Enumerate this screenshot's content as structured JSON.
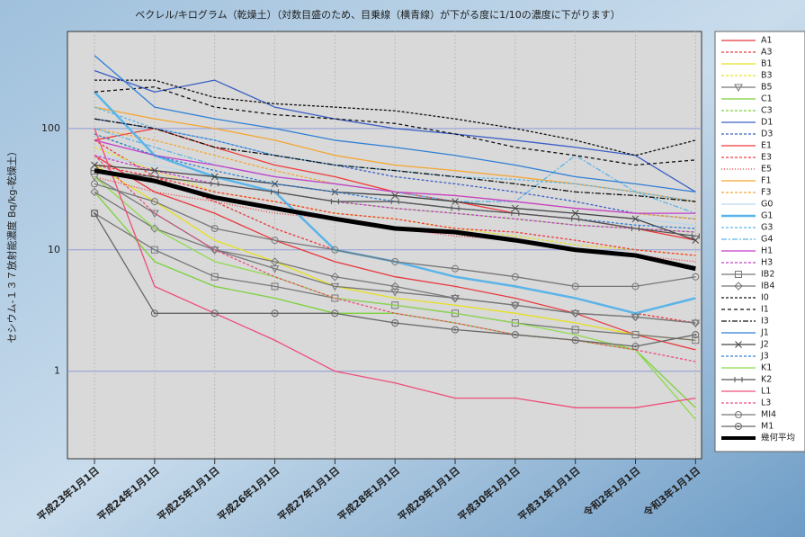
{
  "chart_data": {
    "type": "line",
    "log_y": true,
    "grid": true,
    "title": "ベクレル/キログラム（乾燥土）（対数目盛のため、目乗線（横青線）が下がる度に1/10の濃度に下がります）",
    "y_label": "セシウム-１３７放射能濃度 Bq/kg-乾燥土）",
    "x": [
      0,
      4,
      8,
      12,
      16,
      20,
      24,
      28,
      32,
      36,
      40
    ],
    "xlim": [
      -1.8,
      40.4
    ],
    "xticks": [
      {
        "value": 0,
        "label": "平成23年1月1日"
      },
      {
        "value": 4,
        "label": "平成24年1月1日"
      },
      {
        "value": 8,
        "label": "平成25年1月1日"
      },
      {
        "value": 12,
        "label": "平成26年1月1日"
      },
      {
        "value": 16,
        "label": "平成27年1月1日"
      },
      {
        "value": 20,
        "label": "平成28年1月1日"
      },
      {
        "value": 24,
        "label": "平成29年1月1日"
      },
      {
        "value": 28,
        "label": "平成30年1月1日"
      },
      {
        "value": 32,
        "label": "平成31年1月1日"
      },
      {
        "value": 36,
        "label": "令和2年1月1日"
      },
      {
        "value": 40,
        "label": "令和3年1月1日"
      }
    ],
    "ylim": [
      0.19,
      630
    ],
    "yticks": [
      1,
      10,
      100
    ],
    "series": [
      {
        "name": "A1",
        "color": "#e8383d",
        "dash": "",
        "values": [
          60,
          30,
          20,
          12,
          8,
          6,
          5,
          4,
          3,
          2,
          1.5
        ]
      },
      {
        "name": "A3",
        "color": "#e8383d",
        "dash": "3 2",
        "values": [
          80,
          40,
          25,
          15,
          10,
          8,
          6,
          5,
          4,
          3,
          2.5
        ]
      },
      {
        "name": "B1",
        "color": "#e6e020",
        "dash": "",
        "values": [
          50,
          25,
          12,
          8,
          5,
          4,
          3.5,
          3,
          2.5,
          2,
          1.8
        ]
      },
      {
        "name": "B3",
        "color": "#e6e020",
        "dash": "3 2",
        "values": [
          70,
          45,
          30,
          25,
          20,
          18,
          15,
          13,
          11,
          10,
          9
        ]
      },
      {
        "name": "B5",
        "color": "#777777",
        "dash": "",
        "marker": "triangle",
        "values": [
          40,
          20,
          10,
          7,
          5,
          4.5,
          4,
          3.5,
          3,
          2.8,
          2.5
        ]
      },
      {
        "name": "C1",
        "color": "#7cd13a",
        "dash": "",
        "values": [
          30,
          8,
          5,
          4,
          3,
          3,
          2.5,
          2,
          1.8,
          1.5,
          0.5
        ]
      },
      {
        "name": "C3",
        "color": "#7cd13a",
        "dash": "3 2",
        "values": [
          90,
          60,
          40,
          30,
          25,
          22,
          20,
          18,
          16,
          15,
          14
        ]
      },
      {
        "name": "D1",
        "color": "#3b5fc4",
        "dash": "",
        "values": [
          300,
          200,
          250,
          150,
          120,
          100,
          90,
          80,
          70,
          60,
          30
        ]
      },
      {
        "name": "D3",
        "color": "#3b5fc4",
        "dash": "3 2",
        "values": [
          120,
          100,
          80,
          60,
          50,
          40,
          35,
          30,
          25,
          20,
          18
        ]
      },
      {
        "name": "E1",
        "color": "#f03a3a",
        "dash": "",
        "values": [
          80,
          100,
          70,
          50,
          40,
          30,
          25,
          20,
          18,
          15,
          12
        ]
      },
      {
        "name": "E3",
        "color": "#f03a3a",
        "dash": "3 2",
        "values": [
          50,
          40,
          30,
          25,
          20,
          18,
          15,
          14,
          12,
          10,
          9
        ]
      },
      {
        "name": "E5",
        "color": "#f03a3a",
        "dash": "1 2",
        "values": [
          40,
          30,
          25,
          20,
          18,
          15,
          13,
          12,
          10,
          9,
          8
        ]
      },
      {
        "name": "F1",
        "color": "#f5a530",
        "dash": "",
        "values": [
          150,
          120,
          100,
          80,
          60,
          50,
          45,
          40,
          35,
          30,
          25
        ]
      },
      {
        "name": "F3",
        "color": "#f5a530",
        "dash": "3 2",
        "values": [
          100,
          80,
          60,
          45,
          35,
          30,
          28,
          25,
          22,
          20,
          18
        ]
      },
      {
        "name": "G0",
        "color": "#b9d7ec",
        "dash": "",
        "values": [
          60,
          50,
          40,
          35,
          30,
          28,
          25,
          22,
          20,
          18,
          16
        ]
      },
      {
        "name": "G1",
        "color": "#5ab4e8",
        "dash": "",
        "width": 2.5,
        "values": [
          200,
          60,
          40,
          30,
          10,
          8,
          6,
          5,
          4,
          3,
          4
        ]
      },
      {
        "name": "G3",
        "color": "#5ab4e8",
        "dash": "3 2",
        "values": [
          150,
          100,
          80,
          60,
          50,
          45,
          40,
          38,
          35,
          30,
          25
        ]
      },
      {
        "name": "G4",
        "color": "#5ab4e8",
        "dash": "6 2 2 2",
        "values": [
          100,
          70,
          50,
          40,
          35,
          30,
          25,
          25,
          60,
          30,
          20
        ]
      },
      {
        "name": "H1",
        "color": "#c53ec9",
        "dash": "",
        "values": [
          80,
          60,
          50,
          40,
          35,
          30,
          28,
          25,
          22,
          20,
          20
        ]
      },
      {
        "name": "H3",
        "color": "#c53ec9",
        "dash": "3 2",
        "values": [
          60,
          45,
          35,
          30,
          25,
          22,
          20,
          18,
          16,
          15,
          14
        ]
      },
      {
        "name": "IB2",
        "color": "#777777",
        "dash": "",
        "marker": "square",
        "values": [
          20,
          10,
          6,
          5,
          4,
          3.5,
          3,
          2.5,
          2.2,
          2,
          1.8
        ]
      },
      {
        "name": "IB4",
        "color": "#777777",
        "dash": "",
        "marker": "diamond",
        "values": [
          30,
          15,
          10,
          8,
          6,
          5,
          4,
          3.5,
          3,
          2.8,
          2.5
        ]
      },
      {
        "name": "I0",
        "color": "#111111",
        "dash": "3 2",
        "values": [
          250,
          250,
          180,
          160,
          150,
          140,
          120,
          100,
          80,
          60,
          80
        ]
      },
      {
        "name": "I1",
        "color": "#111111",
        "dash": "4 3",
        "values": [
          200,
          220,
          150,
          130,
          120,
          110,
          90,
          70,
          60,
          50,
          55
        ]
      },
      {
        "name": "I3",
        "color": "#111111",
        "dash": "6 2 2 2",
        "values": [
          120,
          100,
          70,
          60,
          50,
          45,
          40,
          35,
          30,
          28,
          25
        ]
      },
      {
        "name": "J1",
        "color": "#2f7fd6",
        "dash": "",
        "values": [
          400,
          150,
          120,
          100,
          80,
          70,
          60,
          50,
          40,
          35,
          30
        ]
      },
      {
        "name": "J2",
        "color": "#444444",
        "dash": "",
        "marker": "x",
        "values": [
          50,
          45,
          40,
          35,
          30,
          28,
          25,
          22,
          20,
          18,
          12
        ]
      },
      {
        "name": "J3",
        "color": "#2f7fd6",
        "dash": "3 2",
        "values": [
          90,
          60,
          45,
          35,
          30,
          25,
          22,
          20,
          18,
          16,
          15
        ]
      },
      {
        "name": "K1",
        "color": "#8edb4c",
        "dash": "",
        "values": [
          40,
          15,
          8,
          6,
          4,
          3.5,
          3,
          2.5,
          2,
          1.5,
          0.4
        ]
      },
      {
        "name": "K2",
        "color": "#555555",
        "dash": "",
        "marker": "plus",
        "values": [
          45,
          40,
          35,
          30,
          25,
          25,
          22,
          20,
          18,
          15,
          13
        ]
      },
      {
        "name": "L1",
        "color": "#ee4d7a",
        "dash": "",
        "values": [
          100,
          5,
          3,
          1.8,
          1,
          0.8,
          0.6,
          0.6,
          0.5,
          0.5,
          0.6
        ]
      },
      {
        "name": "L3",
        "color": "#ee4d7a",
        "dash": "3 2",
        "values": [
          60,
          20,
          10,
          6,
          4,
          3,
          2.5,
          2,
          1.8,
          1.5,
          1.2
        ]
      },
      {
        "name": "MI4",
        "color": "#777777",
        "dash": "",
        "marker": "circle",
        "values": [
          35,
          25,
          15,
          12,
          10,
          8,
          7,
          6,
          5,
          5,
          6
        ]
      },
      {
        "name": "M1",
        "color": "#666666",
        "dash": "",
        "marker": "circle-dot",
        "values": [
          20,
          3,
          3,
          3,
          3,
          2.5,
          2.2,
          2,
          1.8,
          1.6,
          2
        ]
      },
      {
        "name": "幾何平均",
        "color": "#000000",
        "dash": "",
        "width": 5,
        "values": [
          45,
          37,
          27,
          22,
          18,
          15,
          14,
          12,
          10,
          9,
          7
        ]
      }
    ]
  }
}
